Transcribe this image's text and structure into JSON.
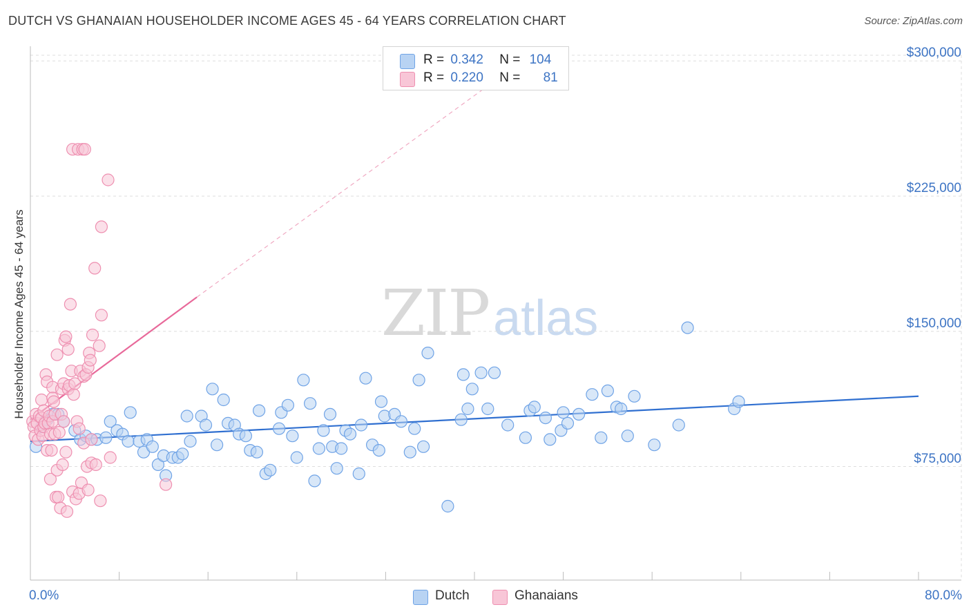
{
  "title": "DUTCH VS GHANAIAN HOUSEHOLDER INCOME AGES 45 - 64 YEARS CORRELATION CHART",
  "source": "Source: ZipAtlas.com",
  "watermark": {
    "zip": "ZIP",
    "atlas": "atlas"
  },
  "colors": {
    "dutch": "#6fa3e6",
    "dutch_fill": "#b8d3f3",
    "dutch_line": "#2f6fd0",
    "ghana": "#ee8fb0",
    "ghana_fill": "#f8c6d7",
    "ghana_line": "#e8699a",
    "tick_text": "#3d74c4"
  },
  "legend": {
    "dutch": {
      "r_label": "R =",
      "r_value": "0.342",
      "n_label": "N =",
      "n_value": "104"
    },
    "ghana": {
      "r_label": "R =",
      "r_value": "0.220",
      "n_label": "N =",
      "n_value": "81"
    }
  },
  "bottom_legend": {
    "dutch": "Dutch",
    "ghana": "Ghanaians"
  },
  "chart_data": {
    "type": "scatter",
    "xlabel": "",
    "ylabel": "Householder Income Ages 45 - 64 years",
    "xlim": [
      0,
      80
    ],
    "ylim": [
      12000,
      307000
    ],
    "y_ticks": [
      {
        "value": 75000,
        "label": "$75,000"
      },
      {
        "value": 150000,
        "label": "$150,000"
      },
      {
        "value": 225000,
        "label": "$225,000"
      },
      {
        "value": 300000,
        "label": "$300,000"
      }
    ],
    "x_tick_labels": [
      {
        "value": 0,
        "label": "0.0%"
      },
      {
        "value": 80,
        "label": "80.0%"
      }
    ],
    "x_minor_ticks": [
      0,
      8,
      16,
      24,
      32,
      40,
      48,
      56,
      64,
      72,
      80
    ],
    "grid": "horizontal dashed",
    "legend_position": "top-center",
    "series": [
      {
        "name": "Dutch",
        "trend": {
          "x": [
            0,
            80
          ],
          "y": [
            89000,
            114000
          ],
          "style": "solid"
        },
        "points": [
          [
            0.5,
            86000
          ],
          [
            1.0,
            97000
          ],
          [
            1.5,
            101000
          ],
          [
            2.0,
            104000
          ],
          [
            2.5,
            104000
          ],
          [
            3.0,
            100000
          ],
          [
            4.0,
            95000
          ],
          [
            4.5,
            90000
          ],
          [
            5.0,
            92000
          ],
          [
            5.5,
            90000
          ],
          [
            6.0,
            90000
          ],
          [
            6.8,
            91000
          ],
          [
            7.2,
            100000
          ],
          [
            7.8,
            95000
          ],
          [
            8.3,
            93000
          ],
          [
            8.8,
            89000
          ],
          [
            9.0,
            105000
          ],
          [
            9.8,
            89000
          ],
          [
            10.2,
            83000
          ],
          [
            10.5,
            90000
          ],
          [
            11.0,
            86000
          ],
          [
            11.5,
            76000
          ],
          [
            12.0,
            81000
          ],
          [
            12.2,
            70000
          ],
          [
            12.8,
            80000
          ],
          [
            13.3,
            80000
          ],
          [
            13.7,
            82000
          ],
          [
            14.1,
            103000
          ],
          [
            14.4,
            89000
          ],
          [
            15.4,
            103000
          ],
          [
            15.8,
            98000
          ],
          [
            16.4,
            118000
          ],
          [
            16.8,
            87000
          ],
          [
            17.4,
            112000
          ],
          [
            17.8,
            99000
          ],
          [
            18.4,
            98000
          ],
          [
            18.8,
            93000
          ],
          [
            19.4,
            92000
          ],
          [
            19.8,
            84000
          ],
          [
            20.4,
            83000
          ],
          [
            20.6,
            106000
          ],
          [
            21.2,
            71000
          ],
          [
            21.6,
            73000
          ],
          [
            22.4,
            96000
          ],
          [
            22.6,
            105000
          ],
          [
            23.2,
            109000
          ],
          [
            23.6,
            92000
          ],
          [
            24.0,
            80000
          ],
          [
            24.6,
            123000
          ],
          [
            25.2,
            110000
          ],
          [
            25.6,
            67000
          ],
          [
            26.0,
            85000
          ],
          [
            26.4,
            95000
          ],
          [
            27.0,
            104000
          ],
          [
            27.2,
            86000
          ],
          [
            27.6,
            74000
          ],
          [
            28.0,
            85000
          ],
          [
            28.4,
            95000
          ],
          [
            28.8,
            93000
          ],
          [
            29.6,
            71000
          ],
          [
            29.8,
            98000
          ],
          [
            30.2,
            124000
          ],
          [
            30.8,
            87000
          ],
          [
            31.4,
            84000
          ],
          [
            31.6,
            111000
          ],
          [
            31.9,
            103000
          ],
          [
            32.8,
            104000
          ],
          [
            33.4,
            100000
          ],
          [
            34.2,
            83000
          ],
          [
            34.6,
            96000
          ],
          [
            35.0,
            123000
          ],
          [
            35.4,
            86000
          ],
          [
            35.8,
            138000
          ],
          [
            37.6,
            53000
          ],
          [
            38.8,
            101000
          ],
          [
            39.0,
            126000
          ],
          [
            39.4,
            107000
          ],
          [
            39.8,
            118000
          ],
          [
            40.6,
            127000
          ],
          [
            41.2,
            107000
          ],
          [
            41.8,
            127000
          ],
          [
            43.0,
            98000
          ],
          [
            44.6,
            91000
          ],
          [
            45.0,
            106000
          ],
          [
            45.4,
            108000
          ],
          [
            46.4,
            102000
          ],
          [
            46.8,
            90000
          ],
          [
            47.8,
            95000
          ],
          [
            48.0,
            105000
          ],
          [
            48.4,
            99000
          ],
          [
            49.4,
            104000
          ],
          [
            50.6,
            115000
          ],
          [
            51.4,
            91000
          ],
          [
            52.0,
            117000
          ],
          [
            52.8,
            108000
          ],
          [
            53.2,
            107000
          ],
          [
            53.8,
            92000
          ],
          [
            54.4,
            114000
          ],
          [
            56.2,
            87000
          ],
          [
            58.4,
            98000
          ],
          [
            59.2,
            152000
          ],
          [
            63.4,
            107000
          ],
          [
            63.8,
            111000
          ]
        ]
      },
      {
        "name": "Ghanaians",
        "trend": {
          "x": [
            0,
            15
          ],
          "y": [
            101000,
            169000
          ],
          "style": "solid",
          "extended": {
            "x": [
              15,
              42.5
            ],
            "y": [
              169000,
              292000
            ],
            "style": "dashed"
          }
        },
        "points": [
          [
            0.2,
            100000
          ],
          [
            0.3,
            97000
          ],
          [
            0.4,
            92000
          ],
          [
            0.5,
            104000
          ],
          [
            0.6,
            99000
          ],
          [
            0.7,
            90000
          ],
          [
            0.8,
            103000
          ],
          [
            0.9,
            95000
          ],
          [
            1.0,
            102000
          ],
          [
            1.0,
            112000
          ],
          [
            1.1,
            92000
          ],
          [
            1.2,
            97000
          ],
          [
            1.2,
            106000
          ],
          [
            1.3,
            99000
          ],
          [
            1.4,
            126000
          ],
          [
            1.5,
            122000
          ],
          [
            1.5,
            84000
          ],
          [
            1.6,
            99000
          ],
          [
            1.7,
            103000
          ],
          [
            1.8,
            68000
          ],
          [
            1.8,
            93000
          ],
          [
            1.9,
            84000
          ],
          [
            2.0,
            119000
          ],
          [
            2.0,
            100000
          ],
          [
            2.0,
            113000
          ],
          [
            2.1,
            111000
          ],
          [
            2.2,
            104000
          ],
          [
            2.2,
            93000
          ],
          [
            2.3,
            58000
          ],
          [
            2.4,
            137000
          ],
          [
            2.4,
            73000
          ],
          [
            2.5,
            58000
          ],
          [
            2.6,
            94000
          ],
          [
            2.7,
            52000
          ],
          [
            2.8,
            104000
          ],
          [
            2.8,
            118000
          ],
          [
            2.9,
            76000
          ],
          [
            3.0,
            100000
          ],
          [
            3.0,
            121000
          ],
          [
            3.1,
            145000
          ],
          [
            3.2,
            147000
          ],
          [
            3.2,
            83000
          ],
          [
            3.3,
            50000
          ],
          [
            3.4,
            118000
          ],
          [
            3.4,
            140000
          ],
          [
            3.5,
            120000
          ],
          [
            3.6,
            165000
          ],
          [
            3.7,
            128000
          ],
          [
            3.8,
            251000
          ],
          [
            3.8,
            61000
          ],
          [
            3.9,
            115000
          ],
          [
            4.0,
            121000
          ],
          [
            4.1,
            57000
          ],
          [
            4.2,
            100000
          ],
          [
            4.3,
            251000
          ],
          [
            4.4,
            60000
          ],
          [
            4.4,
            96000
          ],
          [
            4.5,
            128000
          ],
          [
            4.6,
            66000
          ],
          [
            4.7,
            251000
          ],
          [
            4.8,
            88000
          ],
          [
            4.8,
            125000
          ],
          [
            4.9,
            251000
          ],
          [
            5.0,
            126000
          ],
          [
            5.1,
            75000
          ],
          [
            5.2,
            62000
          ],
          [
            5.2,
            130000
          ],
          [
            5.3,
            138000
          ],
          [
            5.4,
            134000
          ],
          [
            5.5,
            77000
          ],
          [
            5.5,
            90000
          ],
          [
            5.6,
            148000
          ],
          [
            5.8,
            185000
          ],
          [
            5.9,
            76000
          ],
          [
            6.2,
            142000
          ],
          [
            6.3,
            56000
          ],
          [
            6.4,
            159000
          ],
          [
            6.4,
            208000
          ],
          [
            7.0,
            234000
          ],
          [
            7.2,
            80000
          ],
          [
            12.2,
            65000
          ]
        ]
      }
    ]
  }
}
